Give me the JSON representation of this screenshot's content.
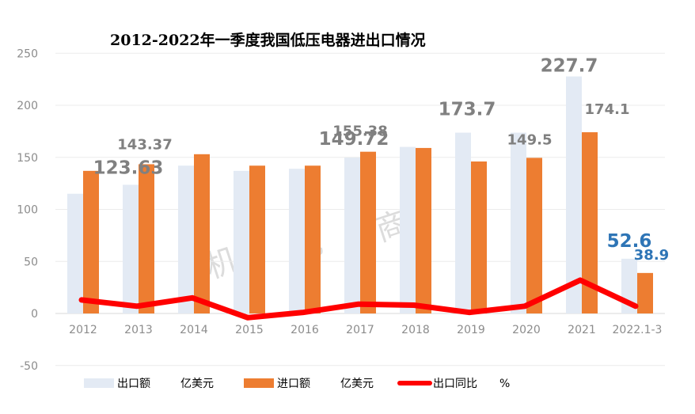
{
  "chart_data": {
    "type": "bar",
    "title": "2012-2022年一季度我国低压电器进出口情况",
    "categories": [
      "2012",
      "2013",
      "2014",
      "2015",
      "2016",
      "2017",
      "2018",
      "2019",
      "2020",
      "2021",
      "2022.1-3"
    ],
    "series": [
      {
        "name": "出口额",
        "unit": "亿美元",
        "type": "bar",
        "color": "#e3eaf4",
        "values": [
          115,
          123.63,
          142,
          137,
          139,
          149.72,
          160,
          173.7,
          173.7,
          227.7,
          52.6
        ]
      },
      {
        "name": "进口额",
        "unit": "亿美元",
        "type": "bar",
        "color": "#ed7d31",
        "values": [
          137,
          143.37,
          153,
          142,
          142,
          155.38,
          159,
          146,
          149.5,
          174.1,
          38.9
        ]
      },
      {
        "name": "出口同比",
        "unit": "%",
        "type": "line",
        "color": "#ff0000",
        "values": [
          13,
          7,
          15,
          -4,
          1,
          9,
          8,
          1,
          7,
          32,
          7
        ]
      }
    ],
    "data_labels": [
      {
        "series": 0,
        "index": 1,
        "text": "123.63",
        "size": "large",
        "color": "#808080"
      },
      {
        "series": 1,
        "index": 1,
        "text": "143.37",
        "size": "medium",
        "color": "#808080"
      },
      {
        "series": 0,
        "index": 5,
        "text": "149.72",
        "size": "large",
        "color": "#808080"
      },
      {
        "series": 1,
        "index": 5,
        "text": "155.38",
        "size": "medium",
        "color": "#808080"
      },
      {
        "series": 0,
        "index": 7,
        "text": "173.7",
        "size": "large",
        "color": "#808080"
      },
      {
        "series": 1,
        "index": 8,
        "text": "149.5",
        "size": "medium",
        "color": "#808080"
      },
      {
        "series": 0,
        "index": 9,
        "text": "227.7",
        "size": "large",
        "color": "#808080"
      },
      {
        "series": 1,
        "index": 9,
        "text": "174.1",
        "size": "medium",
        "color": "#808080"
      },
      {
        "series": 0,
        "index": 10,
        "text": "52.6",
        "size": "large",
        "color": "#2e75b6"
      },
      {
        "series": 1,
        "index": 10,
        "text": "38.9",
        "size": "medium",
        "color": "#2e75b6"
      }
    ],
    "yticks": [
      250,
      200,
      150,
      100,
      50,
      0,
      -50
    ],
    "ylim": [
      -50,
      250
    ],
    "grid": true,
    "legend_position": "bottom",
    "legend": [
      {
        "label": "出口额",
        "unit": "亿美元"
      },
      {
        "label": "进口额",
        "unit": "亿美元"
      },
      {
        "label": "出口同比",
        "unit": "%"
      }
    ],
    "watermark": [
      "机",
      "电",
      "商",
      "会"
    ]
  }
}
